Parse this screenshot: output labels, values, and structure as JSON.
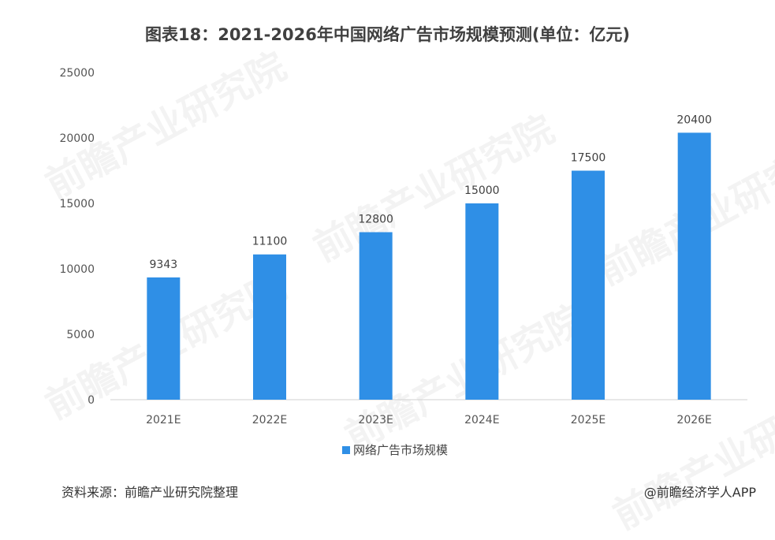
{
  "chart_data": {
    "type": "bar",
    "title": "图表18：2021-2026年中国网络广告市场规模预测(单位：亿元)",
    "categories": [
      "2021E",
      "2022E",
      "2023E",
      "2024E",
      "2025E",
      "2026E"
    ],
    "series": [
      {
        "name": "网络广告市场规模",
        "values": [
          9343,
          11100,
          12800,
          15000,
          17500,
          20400
        ],
        "color": "#2F8FE6"
      }
    ],
    "ylim": [
      0,
      25000
    ],
    "yticks": [
      0,
      5000,
      10000,
      15000,
      20000,
      25000
    ],
    "grid": false,
    "legend_position": "bottom-center",
    "data_labels": true
  },
  "footer": {
    "source": "资料来源：前瞻产业研究院整理",
    "brand": "@前瞻经济学人APP"
  },
  "watermark": {
    "text": "前瞻产业研究院"
  }
}
